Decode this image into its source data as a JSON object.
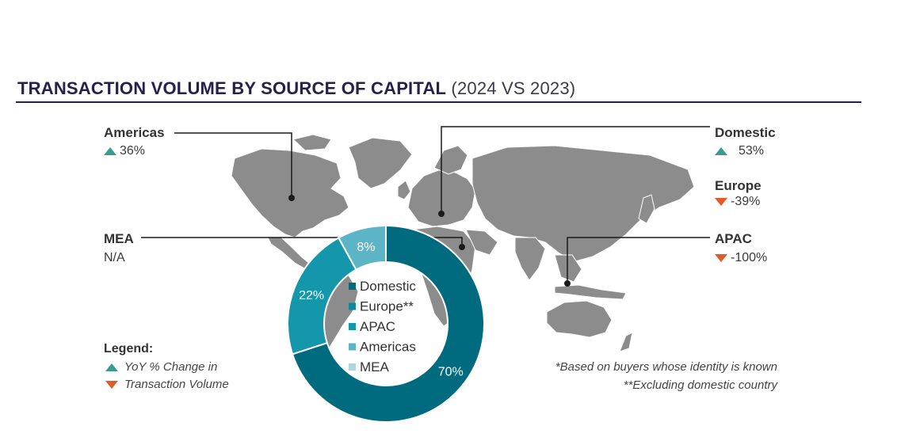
{
  "title": {
    "main": "TRANSACTION VOLUME BY SOURCE OF CAPITAL",
    "sub": "(2024 VS 2023)"
  },
  "regions": [
    {
      "name": "Americas",
      "change": "36%",
      "direction": "up"
    },
    {
      "name": "MEA",
      "change": "N/A",
      "direction": "none"
    },
    {
      "name": "Domestic",
      "change": "53%",
      "direction": "up"
    },
    {
      "name": "Europe",
      "change": "-39%",
      "direction": "down"
    },
    {
      "name": "APAC",
      "change": "-100%",
      "direction": "down"
    }
  ],
  "legend": {
    "title": "Legend:",
    "up_text": "YoY % Change in",
    "down_text": "Transaction Volume"
  },
  "footnotes": [
    "*Based on buyers whose identity is known",
    "**Excluding domestic country"
  ],
  "colors": {
    "title": "#25214a",
    "map": "#8c8c8c",
    "up": "#3a9c8c",
    "down": "#e05a2a"
  },
  "chart_data": {
    "type": "pie",
    "donut": true,
    "slices": [
      {
        "name": "Domestic",
        "legend_label": "Domestic",
        "value": 70,
        "label": "70%",
        "color": "#006b7f"
      },
      {
        "name": "Europe",
        "legend_label": "Europe**",
        "value": 0,
        "label": "",
        "color": "#0e8a9b"
      },
      {
        "name": "APAC",
        "legend_label": "APAC",
        "value": 22,
        "label": "22%",
        "color": "#1497ab"
      },
      {
        "name": "Americas",
        "legend_label": "Americas",
        "value": 8,
        "label": "8%",
        "color": "#5cb5c6"
      },
      {
        "name": "MEA",
        "legend_label": "MEA",
        "value": 0,
        "label": "",
        "color": "#a9d8e2"
      }
    ]
  }
}
